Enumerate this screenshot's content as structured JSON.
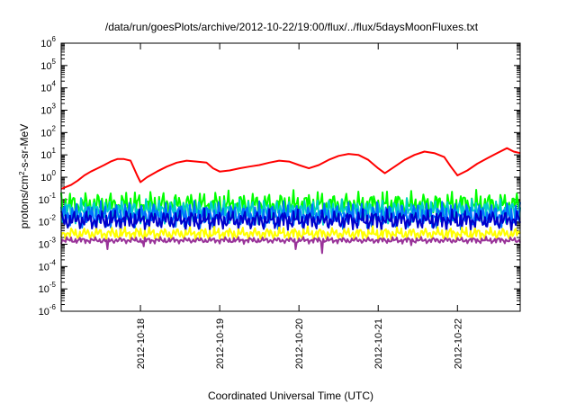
{
  "chart_data": {
    "type": "line",
    "title": "/data/run/goesPlots/archive/2012-10-22/19:00/flux/../flux/5daysMoonFluxes.txt",
    "xlabel": "Coordinated Universal Time (UTC)",
    "ylabel": {
      "prefix": "protons/cm",
      "sup": "2",
      "suffix": "-s-sr-MeV"
    },
    "xlim": [
      "2012-10-17 00:00",
      "2012-10-22 19:00"
    ],
    "ylim": [
      1e-06,
      1000000.0
    ],
    "yscale": "log",
    "x_ticks": [
      {
        "label": "2012-10-18",
        "value": "2012-10-18 00:00"
      },
      {
        "label": "2012-10-19",
        "value": "2012-10-19 00:00"
      },
      {
        "label": "2012-10-20",
        "value": "2012-10-20 00:00"
      },
      {
        "label": "2012-10-21",
        "value": "2012-10-21 00:00"
      },
      {
        "label": "2012-10-22",
        "value": "2012-10-22 00:00"
      }
    ],
    "y_ticks": [
      {
        "base": "10",
        "exp": "6"
      },
      {
        "base": "10",
        "exp": "5"
      },
      {
        "base": "10",
        "exp": "4"
      },
      {
        "base": "10",
        "exp": "3"
      },
      {
        "base": "10",
        "exp": "2"
      },
      {
        "base": "10",
        "exp": "1"
      },
      {
        "base": "10",
        "exp": "0"
      },
      {
        "base": "10",
        "exp": "-1"
      },
      {
        "base": "10",
        "exp": "-2"
      },
      {
        "base": "10",
        "exp": "-3"
      },
      {
        "base": "10",
        "exp": "-4"
      },
      {
        "base": "10",
        "exp": "-5"
      },
      {
        "base": "10",
        "exp": "-6"
      }
    ],
    "grid": false,
    "series": [
      {
        "color": "#ff0000",
        "points": [
          [
            "2012-10-17 00:00",
            0.3
          ],
          [
            "2012-10-17 03:00",
            0.45
          ],
          [
            "2012-10-17 05:00",
            0.7
          ],
          [
            "2012-10-17 07:00",
            1.2
          ],
          [
            "2012-10-17 09:00",
            1.8
          ],
          [
            "2012-10-17 11:00",
            2.5
          ],
          [
            "2012-10-17 13:00",
            3.5
          ],
          [
            "2012-10-17 15:00",
            5.0
          ],
          [
            "2012-10-17 17:00",
            6.5
          ],
          [
            "2012-10-17 19:00",
            6.5
          ],
          [
            "2012-10-17 21:00",
            5.5
          ],
          [
            "2012-10-17 23:00",
            1.2
          ],
          [
            "2012-10-18 00:00",
            0.6
          ],
          [
            "2012-10-18 02:00",
            1.0
          ],
          [
            "2012-10-18 05:00",
            1.8
          ],
          [
            "2012-10-18 08:00",
            3.0
          ],
          [
            "2012-10-18 11:00",
            4.5
          ],
          [
            "2012-10-18 14:00",
            5.5
          ],
          [
            "2012-10-18 17:00",
            5.0
          ],
          [
            "2012-10-18 20:00",
            4.5
          ],
          [
            "2012-10-18 22:00",
            2.5
          ],
          [
            "2012-10-19 00:00",
            1.8
          ],
          [
            "2012-10-19 03:00",
            2.0
          ],
          [
            "2012-10-19 06:00",
            2.5
          ],
          [
            "2012-10-19 09:00",
            3.0
          ],
          [
            "2012-10-19 12:00",
            3.5
          ],
          [
            "2012-10-19 15:00",
            4.5
          ],
          [
            "2012-10-19 18:00",
            5.5
          ],
          [
            "2012-10-19 21:00",
            5.0
          ],
          [
            "2012-10-20 00:00",
            3.5
          ],
          [
            "2012-10-20 03:00",
            2.5
          ],
          [
            "2012-10-20 06:00",
            3.5
          ],
          [
            "2012-10-20 09:00",
            6.0
          ],
          [
            "2012-10-20 12:00",
            9.0
          ],
          [
            "2012-10-20 15:00",
            11.0
          ],
          [
            "2012-10-20 18:00",
            10.0
          ],
          [
            "2012-10-20 21:00",
            6.0
          ],
          [
            "2012-10-21 00:00",
            2.5
          ],
          [
            "2012-10-21 02:00",
            1.5
          ],
          [
            "2012-10-21 05:00",
            3.0
          ],
          [
            "2012-10-21 08:00",
            6.0
          ],
          [
            "2012-10-21 11:00",
            10.0
          ],
          [
            "2012-10-21 14:00",
            14.0
          ],
          [
            "2012-10-21 17:00",
            12.0
          ],
          [
            "2012-10-21 20:00",
            8.0
          ],
          [
            "2012-10-21 22:00",
            3.0
          ],
          [
            "2012-10-22 00:00",
            1.2
          ],
          [
            "2012-10-22 03:00",
            2.0
          ],
          [
            "2012-10-22 06:00",
            4.0
          ],
          [
            "2012-10-22 09:00",
            7.0
          ],
          [
            "2012-10-22 12:00",
            12.0
          ],
          [
            "2012-10-22 15:00",
            20.0
          ],
          [
            "2012-10-22 17:00",
            14.0
          ],
          [
            "2012-10-22 19:00",
            12.0
          ]
        ]
      },
      {
        "color": "#00ff00",
        "base": 0.06,
        "jitter": 0.5,
        "phase": 1.3,
        "spikes": []
      },
      {
        "color": "#00cccc",
        "base": 0.03,
        "jitter": 0.45,
        "phase": 2.1,
        "spikes": []
      },
      {
        "color": "#0070ff",
        "base": 0.02,
        "jitter": 0.5,
        "phase": 3.4,
        "spikes": []
      },
      {
        "color": "#0000cc",
        "base": 0.012,
        "jitter": 0.4,
        "phase": 0.7,
        "spikes": []
      },
      {
        "color": "#ffff00",
        "base": 0.003,
        "jitter": 0.25,
        "phase": 4.2,
        "spikes": []
      },
      {
        "color": "#993399",
        "base": 0.0015,
        "jitter": 0.12,
        "phase": 5.1,
        "spikes": [
          [
            "2012-10-17 14:00",
            0.0006
          ],
          [
            "2012-10-18 01:00",
            0.0008
          ],
          [
            "2012-10-19 23:00",
            0.0006
          ],
          [
            "2012-10-20 07:00",
            0.0004
          ],
          [
            "2012-10-21 10:00",
            0.0009
          ]
        ]
      }
    ]
  }
}
